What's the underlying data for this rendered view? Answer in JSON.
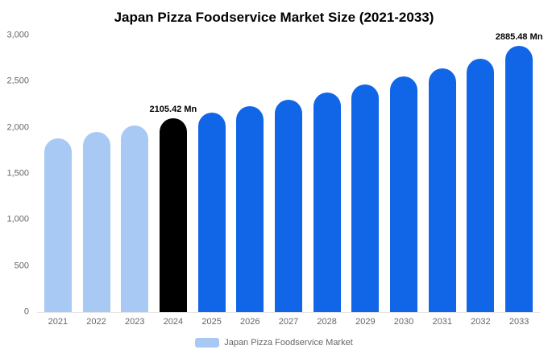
{
  "chart_data": {
    "type": "bar",
    "title": "Japan Pizza Foodservice Market Size (2021-2033)",
    "xlabel": "",
    "ylabel": "",
    "unit": "Mn",
    "categories": [
      "2021",
      "2022",
      "2023",
      "2024",
      "2025",
      "2026",
      "2027",
      "2028",
      "2029",
      "2030",
      "2031",
      "2032",
      "2033"
    ],
    "values": [
      1880,
      1950,
      2020,
      2105.42,
      2165,
      2235,
      2305,
      2385,
      2470,
      2555,
      2645,
      2750,
      2885.48
    ],
    "ylim": [
      0,
      3000
    ],
    "y_ticks": [
      {
        "value": 0,
        "label": "0"
      },
      {
        "value": 500,
        "label": "500"
      },
      {
        "value": 1000,
        "label": "1,000"
      },
      {
        "value": 1500,
        "label": "1,500"
      },
      {
        "value": 2000,
        "label": "2,000"
      },
      {
        "value": 2500,
        "label": "2,500"
      },
      {
        "value": 3000,
        "label": "3,000"
      }
    ],
    "point_colors": [
      "#a7c9f3",
      "#a7c9f3",
      "#a7c9f3",
      "#000000",
      "#1166e8",
      "#1166e8",
      "#1166e8",
      "#1166e8",
      "#1166e8",
      "#1166e8",
      "#1166e8",
      "#1166e8",
      "#1166e8"
    ],
    "annotations": [
      {
        "index": 3,
        "text": "2105.42 Mn"
      },
      {
        "index": 12,
        "text": "2885.48 Mn"
      }
    ],
    "grid": false,
    "legend_position": "bottom"
  },
  "legend": {
    "label": "Japan Pizza Foodservice Market",
    "swatch_color": "#a7c9f3"
  }
}
